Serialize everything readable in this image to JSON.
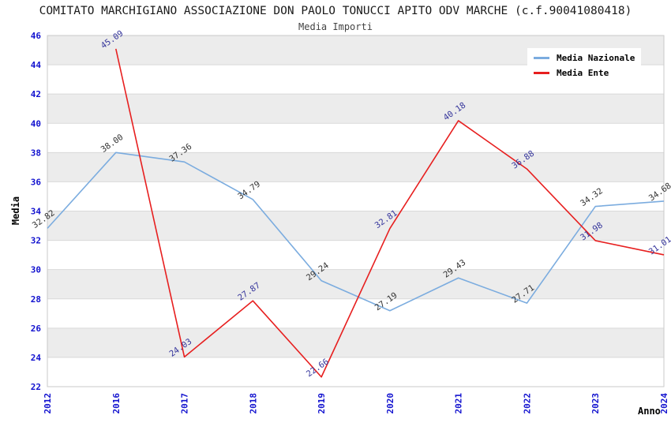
{
  "chart_data": {
    "type": "line",
    "title": "COMITATO MARCHIGIANO ASSOCIAZIONE DON PAOLO TONUCCI APITO ODV MARCHE (c.f.90041080418)",
    "subtitle": "Media Importi",
    "xlabel": "Anno",
    "ylabel": "Media",
    "ylim": [
      22,
      46
    ],
    "ytick_step": 2,
    "grid": "horizontal-alternating-bands",
    "legend_position": "top-right",
    "categories": [
      "2012",
      "2016",
      "2017",
      "2018",
      "2019",
      "2020",
      "2021",
      "2022",
      "2023",
      "2024"
    ],
    "series": [
      {
        "name": "Media Nazionale",
        "color": "#7bacdf",
        "label_color": "#333333",
        "values": [
          32.82,
          38.0,
          37.36,
          34.79,
          29.24,
          27.19,
          29.43,
          27.71,
          34.32,
          34.68
        ]
      },
      {
        "name": "Media Ente",
        "color": "#e71f1f",
        "label_color": "#34349b",
        "values": [
          null,
          45.09,
          24.03,
          27.87,
          22.66,
          32.81,
          40.18,
          36.88,
          31.98,
          31.01
        ]
      }
    ],
    "colors": {
      "tick_label": "#1212cf",
      "band_gray": "#ececec",
      "band_white": "#ffffff",
      "gridline": "#d9d9d9",
      "plot_border": "#c9c9c9",
      "title_text": "#1a1a1a",
      "subtitle_text": "#444444",
      "axis_title_text": "#000000"
    }
  }
}
